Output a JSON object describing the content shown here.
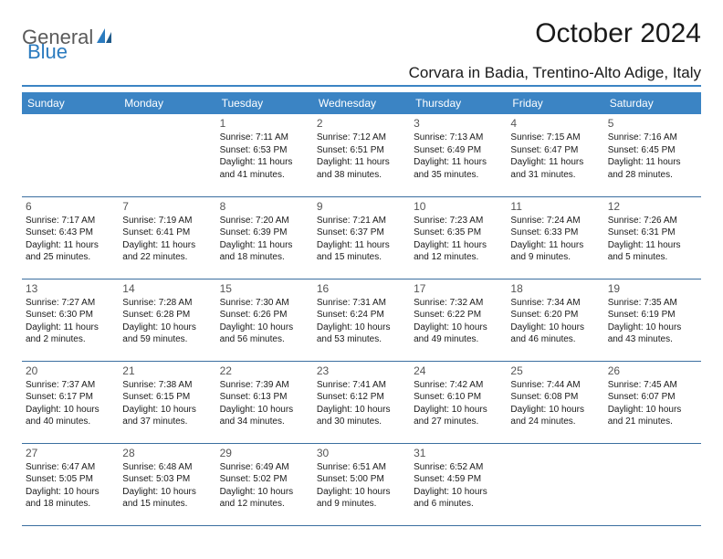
{
  "brand": {
    "general": "General",
    "blue": "Blue"
  },
  "title": "October 2024",
  "location": "Corvara in Badia, Trentino-Alto Adige, Italy",
  "colors": {
    "header_bg": "#3b84c4",
    "header_text": "#ffffff",
    "rule": "#3b6fa0",
    "logo_gray": "#5a5a5a",
    "logo_blue": "#2b7bbf"
  },
  "font": {
    "title_size": 30,
    "location_size": 17,
    "weekday_size": 12,
    "daynum_size": 12,
    "cell_size": 10
  },
  "weekdays": [
    "Sunday",
    "Monday",
    "Tuesday",
    "Wednesday",
    "Thursday",
    "Friday",
    "Saturday"
  ],
  "weeks": [
    [
      {
        "n": "",
        "sunrise": "",
        "sunset": "",
        "daylight": ""
      },
      {
        "n": "",
        "sunrise": "",
        "sunset": "",
        "daylight": ""
      },
      {
        "n": "1",
        "sunrise": "Sunrise: 7:11 AM",
        "sunset": "Sunset: 6:53 PM",
        "daylight": "Daylight: 11 hours and 41 minutes."
      },
      {
        "n": "2",
        "sunrise": "Sunrise: 7:12 AM",
        "sunset": "Sunset: 6:51 PM",
        "daylight": "Daylight: 11 hours and 38 minutes."
      },
      {
        "n": "3",
        "sunrise": "Sunrise: 7:13 AM",
        "sunset": "Sunset: 6:49 PM",
        "daylight": "Daylight: 11 hours and 35 minutes."
      },
      {
        "n": "4",
        "sunrise": "Sunrise: 7:15 AM",
        "sunset": "Sunset: 6:47 PM",
        "daylight": "Daylight: 11 hours and 31 minutes."
      },
      {
        "n": "5",
        "sunrise": "Sunrise: 7:16 AM",
        "sunset": "Sunset: 6:45 PM",
        "daylight": "Daylight: 11 hours and 28 minutes."
      }
    ],
    [
      {
        "n": "6",
        "sunrise": "Sunrise: 7:17 AM",
        "sunset": "Sunset: 6:43 PM",
        "daylight": "Daylight: 11 hours and 25 minutes."
      },
      {
        "n": "7",
        "sunrise": "Sunrise: 7:19 AM",
        "sunset": "Sunset: 6:41 PM",
        "daylight": "Daylight: 11 hours and 22 minutes."
      },
      {
        "n": "8",
        "sunrise": "Sunrise: 7:20 AM",
        "sunset": "Sunset: 6:39 PM",
        "daylight": "Daylight: 11 hours and 18 minutes."
      },
      {
        "n": "9",
        "sunrise": "Sunrise: 7:21 AM",
        "sunset": "Sunset: 6:37 PM",
        "daylight": "Daylight: 11 hours and 15 minutes."
      },
      {
        "n": "10",
        "sunrise": "Sunrise: 7:23 AM",
        "sunset": "Sunset: 6:35 PM",
        "daylight": "Daylight: 11 hours and 12 minutes."
      },
      {
        "n": "11",
        "sunrise": "Sunrise: 7:24 AM",
        "sunset": "Sunset: 6:33 PM",
        "daylight": "Daylight: 11 hours and 9 minutes."
      },
      {
        "n": "12",
        "sunrise": "Sunrise: 7:26 AM",
        "sunset": "Sunset: 6:31 PM",
        "daylight": "Daylight: 11 hours and 5 minutes."
      }
    ],
    [
      {
        "n": "13",
        "sunrise": "Sunrise: 7:27 AM",
        "sunset": "Sunset: 6:30 PM",
        "daylight": "Daylight: 11 hours and 2 minutes."
      },
      {
        "n": "14",
        "sunrise": "Sunrise: 7:28 AM",
        "sunset": "Sunset: 6:28 PM",
        "daylight": "Daylight: 10 hours and 59 minutes."
      },
      {
        "n": "15",
        "sunrise": "Sunrise: 7:30 AM",
        "sunset": "Sunset: 6:26 PM",
        "daylight": "Daylight: 10 hours and 56 minutes."
      },
      {
        "n": "16",
        "sunrise": "Sunrise: 7:31 AM",
        "sunset": "Sunset: 6:24 PM",
        "daylight": "Daylight: 10 hours and 53 minutes."
      },
      {
        "n": "17",
        "sunrise": "Sunrise: 7:32 AM",
        "sunset": "Sunset: 6:22 PM",
        "daylight": "Daylight: 10 hours and 49 minutes."
      },
      {
        "n": "18",
        "sunrise": "Sunrise: 7:34 AM",
        "sunset": "Sunset: 6:20 PM",
        "daylight": "Daylight: 10 hours and 46 minutes."
      },
      {
        "n": "19",
        "sunrise": "Sunrise: 7:35 AM",
        "sunset": "Sunset: 6:19 PM",
        "daylight": "Daylight: 10 hours and 43 minutes."
      }
    ],
    [
      {
        "n": "20",
        "sunrise": "Sunrise: 7:37 AM",
        "sunset": "Sunset: 6:17 PM",
        "daylight": "Daylight: 10 hours and 40 minutes."
      },
      {
        "n": "21",
        "sunrise": "Sunrise: 7:38 AM",
        "sunset": "Sunset: 6:15 PM",
        "daylight": "Daylight: 10 hours and 37 minutes."
      },
      {
        "n": "22",
        "sunrise": "Sunrise: 7:39 AM",
        "sunset": "Sunset: 6:13 PM",
        "daylight": "Daylight: 10 hours and 34 minutes."
      },
      {
        "n": "23",
        "sunrise": "Sunrise: 7:41 AM",
        "sunset": "Sunset: 6:12 PM",
        "daylight": "Daylight: 10 hours and 30 minutes."
      },
      {
        "n": "24",
        "sunrise": "Sunrise: 7:42 AM",
        "sunset": "Sunset: 6:10 PM",
        "daylight": "Daylight: 10 hours and 27 minutes."
      },
      {
        "n": "25",
        "sunrise": "Sunrise: 7:44 AM",
        "sunset": "Sunset: 6:08 PM",
        "daylight": "Daylight: 10 hours and 24 minutes."
      },
      {
        "n": "26",
        "sunrise": "Sunrise: 7:45 AM",
        "sunset": "Sunset: 6:07 PM",
        "daylight": "Daylight: 10 hours and 21 minutes."
      }
    ],
    [
      {
        "n": "27",
        "sunrise": "Sunrise: 6:47 AM",
        "sunset": "Sunset: 5:05 PM",
        "daylight": "Daylight: 10 hours and 18 minutes."
      },
      {
        "n": "28",
        "sunrise": "Sunrise: 6:48 AM",
        "sunset": "Sunset: 5:03 PM",
        "daylight": "Daylight: 10 hours and 15 minutes."
      },
      {
        "n": "29",
        "sunrise": "Sunrise: 6:49 AM",
        "sunset": "Sunset: 5:02 PM",
        "daylight": "Daylight: 10 hours and 12 minutes."
      },
      {
        "n": "30",
        "sunrise": "Sunrise: 6:51 AM",
        "sunset": "Sunset: 5:00 PM",
        "daylight": "Daylight: 10 hours and 9 minutes."
      },
      {
        "n": "31",
        "sunrise": "Sunrise: 6:52 AM",
        "sunset": "Sunset: 4:59 PM",
        "daylight": "Daylight: 10 hours and 6 minutes."
      },
      {
        "n": "",
        "sunrise": "",
        "sunset": "",
        "daylight": ""
      },
      {
        "n": "",
        "sunrise": "",
        "sunset": "",
        "daylight": ""
      }
    ]
  ]
}
